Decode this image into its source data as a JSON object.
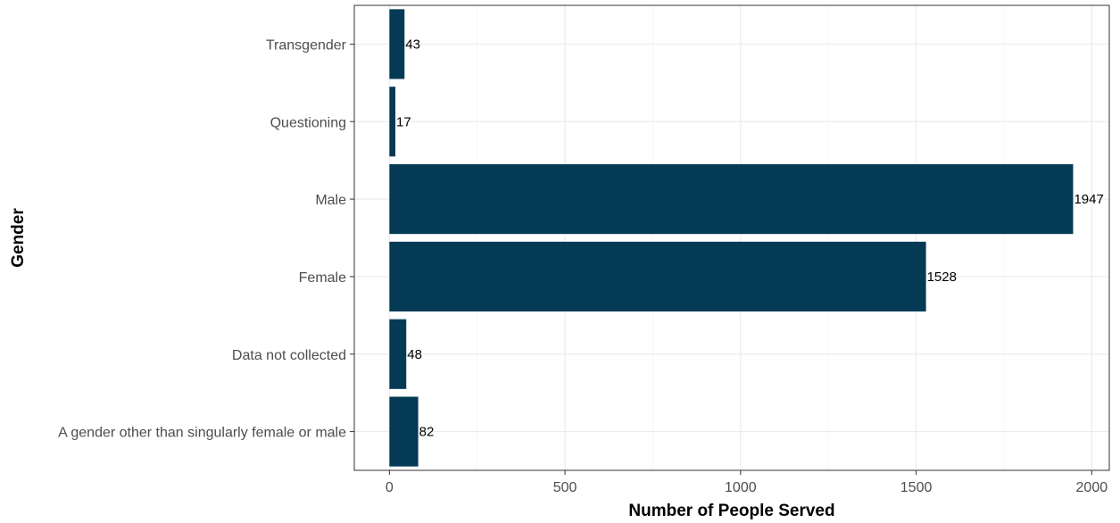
{
  "chart_data": {
    "type": "bar",
    "orientation": "horizontal",
    "categories": [
      "Transgender",
      "Questioning",
      "Male",
      "Female",
      "Data not collected",
      "A gender other than singularly female or male"
    ],
    "values": [
      43,
      17,
      1947,
      1528,
      48,
      82
    ],
    "data_labels": [
      "43",
      "17",
      "1947",
      "1528",
      "48",
      "82"
    ],
    "xlabel": "Number of People Served",
    "ylabel": "Gender",
    "xticks": [
      0,
      500,
      1000,
      1500,
      2000
    ],
    "xtick_labels": [
      "0",
      "500",
      "1000",
      "1500",
      "2000"
    ],
    "xlim": [
      -100,
      2050
    ],
    "grid": true,
    "legend": "none",
    "bar_color": "#053a55"
  }
}
